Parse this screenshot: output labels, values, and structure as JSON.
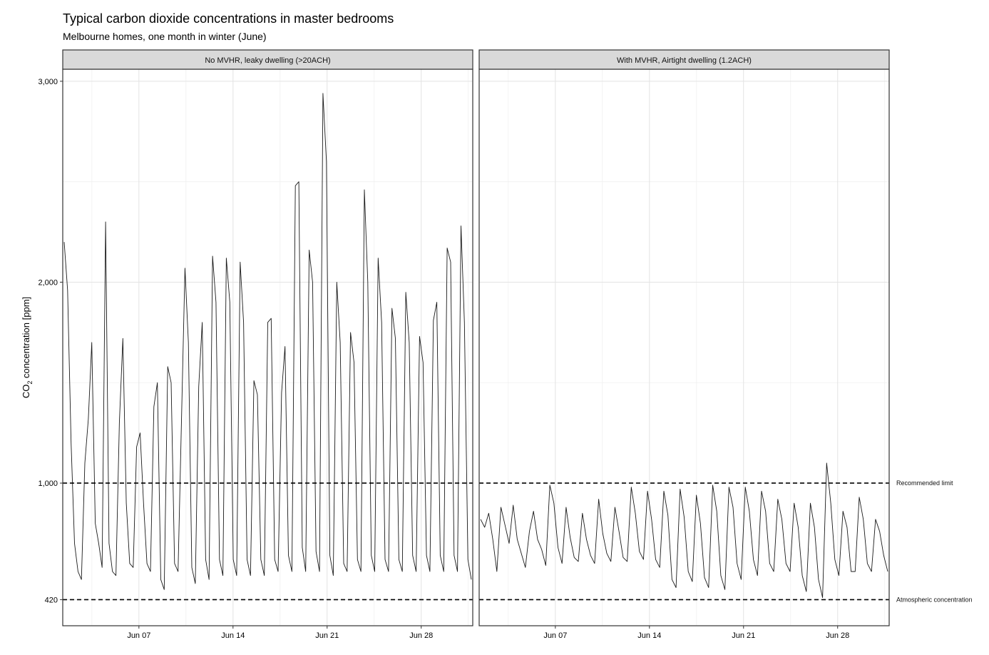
{
  "chart_data": {
    "type": "line",
    "title": "Typical carbon dioxide concentrations in master bedrooms",
    "subtitle": "Melbourne homes, one month in winter (June)",
    "ylabel": "CO2 concentration [ppm]",
    "ylabel_parts": {
      "main": "CO",
      "sub": "2",
      "rest": " concentration [ppm]"
    },
    "ylim": [
      290,
      3060
    ],
    "xlim": [
      "2023-06-01T08:00",
      "2023-07-01T20:00"
    ],
    "y_ticks": [
      {
        "value": 420,
        "label": "420"
      },
      {
        "value": 1000,
        "label": "1,000"
      },
      {
        "value": 2000,
        "label": "2,000"
      },
      {
        "value": 3000,
        "label": "3,000"
      }
    ],
    "y_minor_grid": [
      1500,
      2500
    ],
    "x_ticks": [
      {
        "value": "2023-06-07",
        "label": "Jun 07"
      },
      {
        "value": "2023-06-14",
        "label": "Jun 14"
      },
      {
        "value": "2023-06-21",
        "label": "Jun 21"
      },
      {
        "value": "2023-06-28",
        "label": "Jun 28"
      }
    ],
    "x_minor_grid": [
      "2023-06-03T12:00",
      "2023-06-10T12:00",
      "2023-06-17T12:00",
      "2023-06-24T12:00",
      "2023-07-01T12:00"
    ],
    "reference_lines": [
      {
        "value": 1000,
        "label": "Recommended limit"
      },
      {
        "value": 420,
        "label": "Atmospheric concentration"
      }
    ],
    "grid": true,
    "panels": [
      {
        "label": "No MVHR, leaky dwelling (>20ACH)",
        "series": [
          {
            "y": [
              2200,
              1960,
              1200,
              700,
              560,
              520,
              1100,
              1320,
              1700,
              800,
              700,
              580,
              2300,
              700,
              560,
              540,
              1300,
              1720,
              900,
              600,
              580,
              1180,
              1250,
              900,
              600,
              560,
              1380,
              1500,
              520,
              470,
              1580,
              1500,
              600,
              560,
              1310,
              2070,
              1700,
              580,
              500,
              1480,
              1800,
              620,
              520,
              2130,
              1900,
              620,
              540,
              2120,
              1900,
              620,
              540,
              2100,
              1800,
              620,
              540,
              1510,
              1440,
              620,
              540,
              1800,
              1820,
              620,
              560,
              1450,
              1680,
              640,
              560,
              2480,
              2500,
              680,
              560,
              2160,
              2000,
              660,
              560,
              2940,
              2600,
              640,
              540,
              2000,
              1700,
              600,
              560,
              1750,
              1600,
              620,
              560,
              2460,
              2000,
              640,
              560,
              2120,
              1800,
              620,
              560,
              1870,
              1720,
              620,
              560,
              1950,
              1700,
              640,
              560,
              1730,
              1600,
              640,
              560,
              1810,
              1900,
              640,
              560,
              2170,
              2100,
              640,
              560,
              2280,
              1800,
              620,
              520
            ]
          }
        ]
      },
      {
        "label": "With MVHR, Airtight dwelling (1.2ACH)",
        "series": [
          {
            "y": [
              820,
              780,
              850,
              720,
              560,
              880,
              790,
              700,
              890,
              720,
              650,
              580,
              760,
              860,
              720,
              670,
              590,
              990,
              900,
              680,
              600,
              880,
              730,
              630,
              610,
              850,
              720,
              640,
              600,
              920,
              750,
              650,
              610,
              880,
              760,
              630,
              610,
              980,
              850,
              660,
              620,
              960,
              820,
              620,
              580,
              960,
              840,
              520,
              480,
              970,
              830,
              560,
              510,
              940,
              800,
              530,
              480,
              990,
              860,
              540,
              470,
              980,
              880,
              600,
              520,
              980,
              860,
              620,
              540,
              960,
              860,
              600,
              560,
              920,
              820,
              600,
              560,
              900,
              780,
              540,
              460,
              900,
              780,
              520,
              430,
              1100,
              900,
              620,
              540,
              860,
              780,
              560,
              560,
              930,
              820,
              600,
              560,
              820,
              760,
              640,
              560
            ]
          }
        ]
      }
    ]
  }
}
